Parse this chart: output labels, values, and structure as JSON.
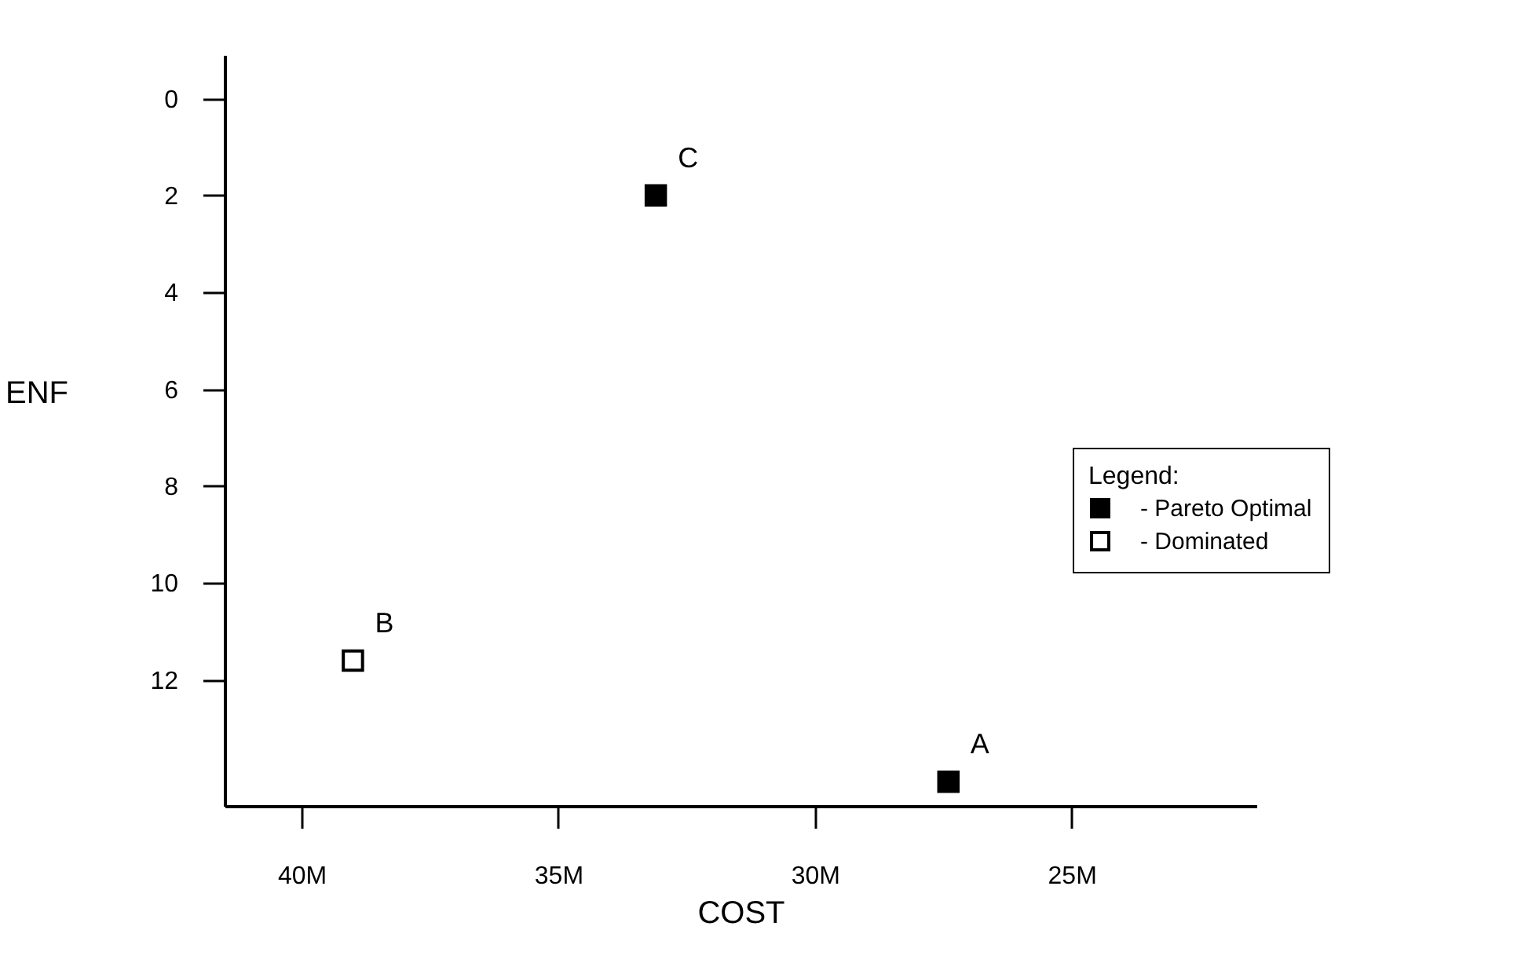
{
  "chart_data": {
    "type": "scatter",
    "xlabel": "COST",
    "ylabel": "ENF",
    "legend_title": "Legend:",
    "xlim": [
      41.5,
      21.4
    ],
    "xticks": [
      {
        "value": 40,
        "label": "40M"
      },
      {
        "value": 35,
        "label": "35M"
      },
      {
        "value": 30,
        "label": "30M"
      },
      {
        "value": 25,
        "label": "25M"
      }
    ],
    "ylim": [
      14.6,
      -0.9
    ],
    "yticks": [
      0,
      2,
      4,
      6,
      8,
      10,
      12
    ],
    "marker": "square",
    "legend": "right",
    "series": [
      {
        "name": "- Pareto Optimal",
        "color": "#000000",
        "x": [
          33.1,
          27.4
        ],
        "values": [
          2,
          14.1
        ]
      },
      {
        "name": "- Dominated",
        "color": "#ffffff",
        "x": [
          39.0
        ],
        "values": [
          11.6
        ]
      }
    ],
    "annotations": [
      {
        "text": "C",
        "x": 33.1,
        "y": 2
      },
      {
        "text": "B",
        "x": 39.0,
        "y": 11.6
      },
      {
        "text": "A",
        "x": 27.4,
        "y": 14.1
      }
    ]
  }
}
